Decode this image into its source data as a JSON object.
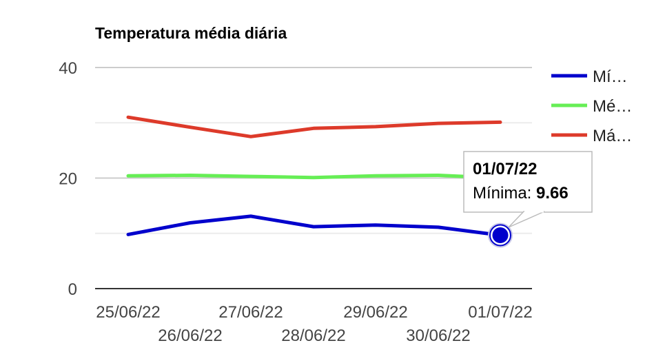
{
  "chart_data": {
    "type": "line",
    "title": "Temperatura média diária",
    "x": [
      "25/06/22",
      "26/06/22",
      "27/06/22",
      "28/06/22",
      "29/06/22",
      "30/06/22",
      "01/07/22"
    ],
    "series": [
      {
        "name": "Mínima",
        "legend_label": "Mí…",
        "color": "#0000cc",
        "values": [
          9.8,
          11.9,
          13.1,
          11.2,
          11.5,
          11.1,
          9.66
        ]
      },
      {
        "name": "Média",
        "legend_label": "Mé…",
        "color": "#66ee55",
        "values": [
          20.4,
          20.5,
          20.3,
          20.1,
          20.4,
          20.5,
          20.0
        ]
      },
      {
        "name": "Máxima",
        "legend_label": "Má…",
        "color": "#dd3a2a",
        "values": [
          31.0,
          29.2,
          27.5,
          29.0,
          29.3,
          29.9,
          30.1
        ]
      }
    ],
    "ylim": [
      0,
      40
    ],
    "yticks": [
      0,
      20,
      40
    ],
    "grid": true,
    "legend": "right",
    "tooltip": {
      "date": "01/07/22",
      "label": "Mínima:",
      "value": "9.66",
      "series_index": 0,
      "point_index": 6
    }
  }
}
